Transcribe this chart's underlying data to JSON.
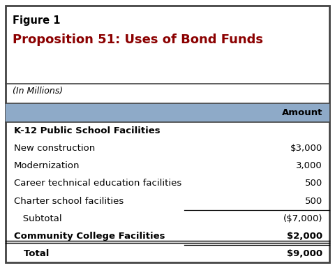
{
  "figure_label": "Figure 1",
  "title": "Proposition 51: Uses of Bond Funds",
  "subtitle": "(In Millions)",
  "header_col": "Amount",
  "header_bg": "#8eaac8",
  "outer_border_color": "#444444",
  "title_color": "#8b0000",
  "bg_color": "#ffffff",
  "rows": [
    {
      "label": "K-12 Public School Facilities",
      "value": "",
      "bold": true,
      "line_below": false
    },
    {
      "label": "New construction",
      "value": "$3,000",
      "bold": false,
      "line_below": false
    },
    {
      "label": "Modernization",
      "value": "3,000",
      "bold": false,
      "line_below": false
    },
    {
      "label": "Career technical education facilities",
      "value": "500",
      "bold": false,
      "line_below": false
    },
    {
      "label": "Charter school facilities",
      "value": "500",
      "bold": false,
      "line_below": true
    },
    {
      "label": "   Subtotal",
      "value": "($7,000)",
      "bold": false,
      "line_below": false
    },
    {
      "label": "Community College Facilities",
      "value": "$2,000",
      "bold": true,
      "line_below": true
    },
    {
      "label": "   Total",
      "value": "$9,000",
      "bold": true,
      "line_below": false
    }
  ]
}
